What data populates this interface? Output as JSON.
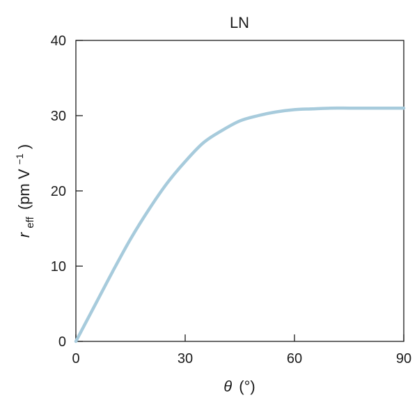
{
  "chart_data": {
    "type": "line",
    "title": "LN",
    "xlabel": {
      "symbol": "θ",
      "unit": "(°)"
    },
    "ylabel": {
      "symbol": "r",
      "subscript": "eff",
      "unit_prefix": "(pm V",
      "unit_sup": "−1",
      "unit_suffix": ")"
    },
    "xlim": [
      0,
      90
    ],
    "ylim": [
      0,
      40
    ],
    "xticks": [
      0,
      30,
      60,
      90
    ],
    "yticks": [
      0,
      10,
      20,
      30,
      40
    ],
    "grid": false,
    "series": [
      {
        "color": "#a7cbdc",
        "x": [
          0,
          5,
          10,
          15,
          20,
          25,
          30,
          35,
          40,
          45,
          50,
          55,
          60,
          65,
          70,
          75,
          80,
          85,
          90
        ],
        "y": [
          0,
          4.6,
          9.2,
          13.6,
          17.5,
          21.0,
          23.9,
          26.4,
          28.0,
          29.3,
          30.0,
          30.5,
          30.8,
          30.9,
          31.0,
          31.0,
          31.0,
          31.0,
          31.0
        ]
      }
    ]
  }
}
